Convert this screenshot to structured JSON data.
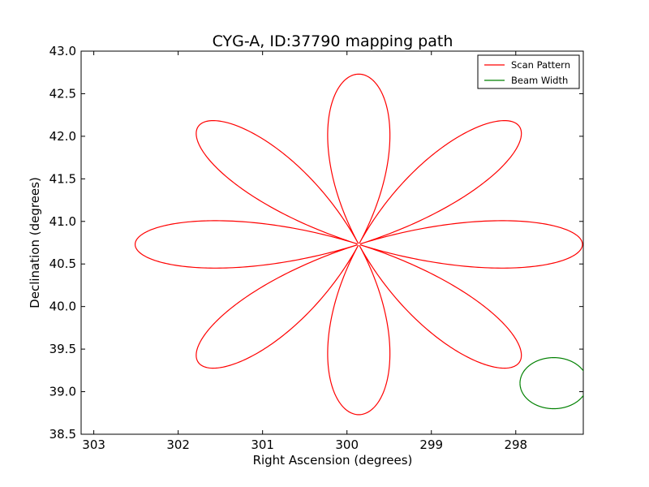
{
  "chart_data": {
    "type": "line",
    "title": "CYG-A, ID:37790 mapping path",
    "xlabel": "Right Ascension (degrees)",
    "ylabel": "Declination (degrees)",
    "xlim": [
      303.15,
      297.2
    ],
    "ylim": [
      38.5,
      43.0
    ],
    "x_inverted": true,
    "x_ticks": [
      303,
      302,
      301,
      300,
      299,
      298
    ],
    "y_ticks": [
      38.5,
      39.0,
      39.5,
      40.0,
      40.5,
      41.0,
      41.5,
      42.0,
      42.5,
      43.0
    ],
    "x_tick_labels": [
      "303",
      "302",
      "301",
      "300",
      "299",
      "298"
    ],
    "y_tick_labels": [
      "38.5",
      "39.0",
      "39.5",
      "40.0",
      "40.5",
      "41.0",
      "41.5",
      "42.0",
      "42.5",
      "43.0"
    ],
    "grid": false,
    "legend_position": "top-right",
    "series": [
      {
        "name": "Scan Pattern",
        "color": "#ff0000",
        "kind": "rose",
        "center": [
          299.86,
          40.73
        ],
        "petals": 8,
        "radius_ra": 2.65,
        "radius_dec": 2.0
      },
      {
        "name": "Beam Width",
        "color": "#008000",
        "kind": "circle",
        "center": [
          297.55,
          39.1
        ],
        "radius_ra": 0.4,
        "radius_dec": 0.3
      }
    ]
  }
}
